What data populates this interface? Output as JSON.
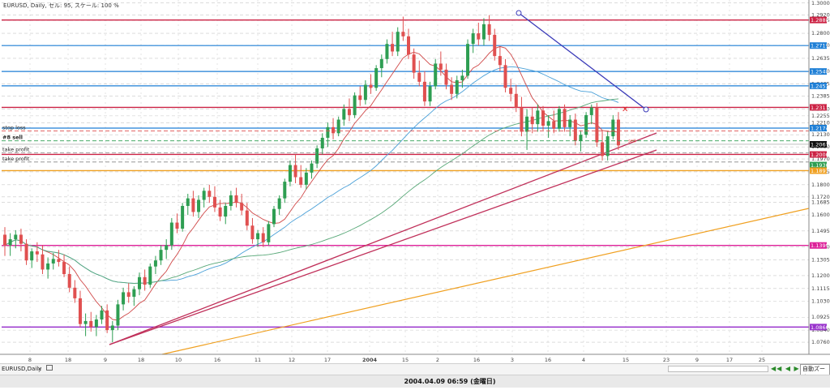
{
  "window": {
    "title": "EURUSD, Daily, セル: 95, スケール: 100 %",
    "tab_label": "EURUSD,Daily",
    "tab_close": "×",
    "status_time": "2004.04.09 06:59 (金曜日)",
    "nav_buttons": "◀◀ ◀ ▶ ▶▶",
    "mode_button": "自動ズーム"
  },
  "colors": {
    "candle_up": "#2e9e52",
    "candle_down": "#e05050",
    "grid": "#c8c8c8",
    "blue_hline": "#1e7fd6",
    "red_hline": "#cc2244",
    "magenta_hline": "#dd2299",
    "purple_hline": "#9933cc",
    "orange_line": "#f0a020",
    "ma_fast": "#d04848",
    "ma_mid": "#4aa0d8",
    "ma_slow": "#58a878",
    "trendline_red": "#c0305a",
    "trendline_blue": "#3a3ab8"
  },
  "chart_data": {
    "type": "candlestick",
    "symbol": "EURUSD",
    "timeframe": "Daily",
    "ylim": [
      1.068,
      1.302
    ],
    "y_ticks": [
      "1.3000",
      "1.2920",
      "1.2885",
      "1.2800",
      "1.2720",
      "1.2635",
      "1.2550",
      "1.2465",
      "1.2385",
      "1.2300",
      "1.2255",
      "1.2210",
      "1.2130",
      "1.2050",
      "1.1970",
      "1.1885",
      "1.1800",
      "1.1720",
      "1.1685",
      "1.1600",
      "1.1495",
      "1.1390",
      "1.1305",
      "1.1200",
      "1.1115",
      "1.1030",
      "1.0925",
      "1.0840",
      "1.0760"
    ],
    "x_ticks": [
      "8",
      "18",
      "9",
      "18",
      "10",
      "16",
      "11",
      "12",
      "17",
      "2004",
      "15",
      "2",
      "16",
      "3",
      "16",
      "4",
      "15",
      "23",
      "9",
      "17",
      "25"
    ],
    "price_labels": [
      {
        "value": "1.2888",
        "kind": "red"
      },
      {
        "value": "1.2719",
        "kind": "blue"
      },
      {
        "value": "1.2548",
        "kind": "blue"
      },
      {
        "value": "1.2453",
        "kind": "blue"
      },
      {
        "value": "1.2311",
        "kind": "red"
      },
      {
        "value": "1.2174",
        "kind": "blue"
      },
      {
        "value": "1.2067",
        "kind": "current"
      },
      {
        "value": "1.2000",
        "kind": "red"
      },
      {
        "value": "1.1930",
        "kind": "green"
      },
      {
        "value": "1.1893",
        "kind": "orange"
      },
      {
        "value": "1.1399",
        "kind": "magenta"
      },
      {
        "value": "1.0860",
        "kind": "purple"
      }
    ],
    "order_labels": {
      "stop_loss": "stop loss",
      "sell": "#8 sell",
      "take_profit_1": "take profit",
      "take_profit_2": "take profit",
      "sell_marker": "sell"
    },
    "candles": [
      {
        "o": 1.147,
        "h": 1.152,
        "l": 1.133,
        "c": 1.14
      },
      {
        "o": 1.14,
        "h": 1.148,
        "l": 1.133,
        "c": 1.144
      },
      {
        "o": 1.144,
        "h": 1.15,
        "l": 1.138,
        "c": 1.147
      },
      {
        "o": 1.147,
        "h": 1.151,
        "l": 1.136,
        "c": 1.141
      },
      {
        "o": 1.141,
        "h": 1.144,
        "l": 1.127,
        "c": 1.13
      },
      {
        "o": 1.13,
        "h": 1.138,
        "l": 1.125,
        "c": 1.136
      },
      {
        "o": 1.136,
        "h": 1.142,
        "l": 1.129,
        "c": 1.134
      },
      {
        "o": 1.134,
        "h": 1.14,
        "l": 1.121,
        "c": 1.124
      },
      {
        "o": 1.124,
        "h": 1.132,
        "l": 1.118,
        "c": 1.128
      },
      {
        "o": 1.128,
        "h": 1.135,
        "l": 1.124,
        "c": 1.131
      },
      {
        "o": 1.131,
        "h": 1.137,
        "l": 1.126,
        "c": 1.129
      },
      {
        "o": 1.129,
        "h": 1.134,
        "l": 1.119,
        "c": 1.121
      },
      {
        "o": 1.121,
        "h": 1.126,
        "l": 1.109,
        "c": 1.112
      },
      {
        "o": 1.112,
        "h": 1.117,
        "l": 1.102,
        "c": 1.105
      },
      {
        "o": 1.105,
        "h": 1.11,
        "l": 1.086,
        "c": 1.088
      },
      {
        "o": 1.088,
        "h": 1.095,
        "l": 1.08,
        "c": 1.09
      },
      {
        "o": 1.09,
        "h": 1.096,
        "l": 1.083,
        "c": 1.086
      },
      {
        "o": 1.086,
        "h": 1.094,
        "l": 1.08,
        "c": 1.091
      },
      {
        "o": 1.091,
        "h": 1.1,
        "l": 1.088,
        "c": 1.097
      },
      {
        "o": 1.097,
        "h": 1.101,
        "l": 1.082,
        "c": 1.084
      },
      {
        "o": 1.084,
        "h": 1.09,
        "l": 1.076,
        "c": 1.087
      },
      {
        "o": 1.087,
        "h": 1.104,
        "l": 1.084,
        "c": 1.101
      },
      {
        "o": 1.101,
        "h": 1.112,
        "l": 1.097,
        "c": 1.109
      },
      {
        "o": 1.109,
        "h": 1.115,
        "l": 1.102,
        "c": 1.106
      },
      {
        "o": 1.106,
        "h": 1.113,
        "l": 1.1,
        "c": 1.111
      },
      {
        "o": 1.111,
        "h": 1.122,
        "l": 1.107,
        "c": 1.119
      },
      {
        "o": 1.119,
        "h": 1.124,
        "l": 1.11,
        "c": 1.114
      },
      {
        "o": 1.114,
        "h": 1.128,
        "l": 1.112,
        "c": 1.126
      },
      {
        "o": 1.126,
        "h": 1.133,
        "l": 1.121,
        "c": 1.13
      },
      {
        "o": 1.13,
        "h": 1.14,
        "l": 1.127,
        "c": 1.137
      },
      {
        "o": 1.137,
        "h": 1.144,
        "l": 1.131,
        "c": 1.14
      },
      {
        "o": 1.14,
        "h": 1.158,
        "l": 1.137,
        "c": 1.155
      },
      {
        "o": 1.155,
        "h": 1.161,
        "l": 1.148,
        "c": 1.151
      },
      {
        "o": 1.151,
        "h": 1.168,
        "l": 1.149,
        "c": 1.166
      },
      {
        "o": 1.166,
        "h": 1.174,
        "l": 1.16,
        "c": 1.171
      },
      {
        "o": 1.171,
        "h": 1.176,
        "l": 1.159,
        "c": 1.162
      },
      {
        "o": 1.162,
        "h": 1.173,
        "l": 1.158,
        "c": 1.17
      },
      {
        "o": 1.17,
        "h": 1.178,
        "l": 1.165,
        "c": 1.176
      },
      {
        "o": 1.176,
        "h": 1.18,
        "l": 1.168,
        "c": 1.172
      },
      {
        "o": 1.172,
        "h": 1.179,
        "l": 1.162,
        "c": 1.165
      },
      {
        "o": 1.165,
        "h": 1.17,
        "l": 1.156,
        "c": 1.159
      },
      {
        "o": 1.159,
        "h": 1.168,
        "l": 1.154,
        "c": 1.166
      },
      {
        "o": 1.166,
        "h": 1.176,
        "l": 1.163,
        "c": 1.173
      },
      {
        "o": 1.173,
        "h": 1.178,
        "l": 1.165,
        "c": 1.168
      },
      {
        "o": 1.168,
        "h": 1.174,
        "l": 1.16,
        "c": 1.163
      },
      {
        "o": 1.163,
        "h": 1.168,
        "l": 1.15,
        "c": 1.153
      },
      {
        "o": 1.153,
        "h": 1.158,
        "l": 1.141,
        "c": 1.144
      },
      {
        "o": 1.144,
        "h": 1.15,
        "l": 1.139,
        "c": 1.148
      },
      {
        "o": 1.148,
        "h": 1.152,
        "l": 1.139,
        "c": 1.142
      },
      {
        "o": 1.142,
        "h": 1.156,
        "l": 1.14,
        "c": 1.154
      },
      {
        "o": 1.154,
        "h": 1.166,
        "l": 1.152,
        "c": 1.164
      },
      {
        "o": 1.164,
        "h": 1.173,
        "l": 1.16,
        "c": 1.171
      },
      {
        "o": 1.171,
        "h": 1.184,
        "l": 1.168,
        "c": 1.182
      },
      {
        "o": 1.182,
        "h": 1.196,
        "l": 1.179,
        "c": 1.193
      },
      {
        "o": 1.193,
        "h": 1.2,
        "l": 1.181,
        "c": 1.185
      },
      {
        "o": 1.185,
        "h": 1.193,
        "l": 1.178,
        "c": 1.18
      },
      {
        "o": 1.18,
        "h": 1.191,
        "l": 1.177,
        "c": 1.188
      },
      {
        "o": 1.188,
        "h": 1.196,
        "l": 1.184,
        "c": 1.194
      },
      {
        "o": 1.194,
        "h": 1.206,
        "l": 1.191,
        "c": 1.204
      },
      {
        "o": 1.204,
        "h": 1.214,
        "l": 1.2,
        "c": 1.211
      },
      {
        "o": 1.211,
        "h": 1.221,
        "l": 1.205,
        "c": 1.218
      },
      {
        "o": 1.218,
        "h": 1.224,
        "l": 1.21,
        "c": 1.214
      },
      {
        "o": 1.214,
        "h": 1.225,
        "l": 1.212,
        "c": 1.223
      },
      {
        "o": 1.223,
        "h": 1.233,
        "l": 1.219,
        "c": 1.23
      },
      {
        "o": 1.23,
        "h": 1.237,
        "l": 1.222,
        "c": 1.226
      },
      {
        "o": 1.226,
        "h": 1.241,
        "l": 1.224,
        "c": 1.239
      },
      {
        "o": 1.239,
        "h": 1.245,
        "l": 1.232,
        "c": 1.236
      },
      {
        "o": 1.236,
        "h": 1.249,
        "l": 1.233,
        "c": 1.246
      },
      {
        "o": 1.246,
        "h": 1.253,
        "l": 1.24,
        "c": 1.244
      },
      {
        "o": 1.244,
        "h": 1.259,
        "l": 1.242,
        "c": 1.257
      },
      {
        "o": 1.257,
        "h": 1.266,
        "l": 1.251,
        "c": 1.263
      },
      {
        "o": 1.263,
        "h": 1.276,
        "l": 1.26,
        "c": 1.273
      },
      {
        "o": 1.273,
        "h": 1.281,
        "l": 1.265,
        "c": 1.268
      },
      {
        "o": 1.268,
        "h": 1.284,
        "l": 1.265,
        "c": 1.281
      },
      {
        "o": 1.281,
        "h": 1.291,
        "l": 1.275,
        "c": 1.278
      },
      {
        "o": 1.278,
        "h": 1.283,
        "l": 1.263,
        "c": 1.266
      },
      {
        "o": 1.266,
        "h": 1.27,
        "l": 1.25,
        "c": 1.254
      },
      {
        "o": 1.254,
        "h": 1.262,
        "l": 1.245,
        "c": 1.248
      },
      {
        "o": 1.248,
        "h": 1.255,
        "l": 1.232,
        "c": 1.235
      },
      {
        "o": 1.235,
        "h": 1.248,
        "l": 1.232,
        "c": 1.245
      },
      {
        "o": 1.245,
        "h": 1.263,
        "l": 1.243,
        "c": 1.26
      },
      {
        "o": 1.26,
        "h": 1.268,
        "l": 1.252,
        "c": 1.256
      },
      {
        "o": 1.256,
        "h": 1.26,
        "l": 1.243,
        "c": 1.246
      },
      {
        "o": 1.246,
        "h": 1.251,
        "l": 1.236,
        "c": 1.24
      },
      {
        "o": 1.24,
        "h": 1.252,
        "l": 1.237,
        "c": 1.249
      },
      {
        "o": 1.249,
        "h": 1.256,
        "l": 1.244,
        "c": 1.252
      },
      {
        "o": 1.252,
        "h": 1.276,
        "l": 1.25,
        "c": 1.273
      },
      {
        "o": 1.273,
        "h": 1.283,
        "l": 1.267,
        "c": 1.28
      },
      {
        "o": 1.28,
        "h": 1.287,
        "l": 1.272,
        "c": 1.276
      },
      {
        "o": 1.276,
        "h": 1.29,
        "l": 1.272,
        "c": 1.286
      },
      {
        "o": 1.286,
        "h": 1.292,
        "l": 1.275,
        "c": 1.279
      },
      {
        "o": 1.279,
        "h": 1.283,
        "l": 1.262,
        "c": 1.265
      },
      {
        "o": 1.265,
        "h": 1.271,
        "l": 1.255,
        "c": 1.259
      },
      {
        "o": 1.259,
        "h": 1.263,
        "l": 1.241,
        "c": 1.244
      },
      {
        "o": 1.244,
        "h": 1.25,
        "l": 1.235,
        "c": 1.24
      },
      {
        "o": 1.24,
        "h": 1.246,
        "l": 1.228,
        "c": 1.231
      },
      {
        "o": 1.231,
        "h": 1.238,
        "l": 1.212,
        "c": 1.215
      },
      {
        "o": 1.215,
        "h": 1.23,
        "l": 1.203,
        "c": 1.225
      },
      {
        "o": 1.225,
        "h": 1.231,
        "l": 1.214,
        "c": 1.22
      },
      {
        "o": 1.22,
        "h": 1.233,
        "l": 1.215,
        "c": 1.229
      },
      {
        "o": 1.229,
        "h": 1.232,
        "l": 1.216,
        "c": 1.219
      },
      {
        "o": 1.219,
        "h": 1.226,
        "l": 1.211,
        "c": 1.222
      },
      {
        "o": 1.222,
        "h": 1.229,
        "l": 1.214,
        "c": 1.217
      },
      {
        "o": 1.217,
        "h": 1.232,
        "l": 1.215,
        "c": 1.23
      },
      {
        "o": 1.23,
        "h": 1.233,
        "l": 1.215,
        "c": 1.218
      },
      {
        "o": 1.218,
        "h": 1.226,
        "l": 1.212,
        "c": 1.223
      },
      {
        "o": 1.223,
        "h": 1.227,
        "l": 1.206,
        "c": 1.209
      },
      {
        "o": 1.209,
        "h": 1.216,
        "l": 1.202,
        "c": 1.213
      },
      {
        "o": 1.213,
        "h": 1.228,
        "l": 1.211,
        "c": 1.226
      },
      {
        "o": 1.226,
        "h": 1.233,
        "l": 1.22,
        "c": 1.231
      },
      {
        "o": 1.231,
        "h": 1.234,
        "l": 1.205,
        "c": 1.208
      },
      {
        "o": 1.208,
        "h": 1.216,
        "l": 1.196,
        "c": 1.199
      },
      {
        "o": 1.199,
        "h": 1.215,
        "l": 1.196,
        "c": 1.212
      },
      {
        "o": 1.212,
        "h": 1.226,
        "l": 1.21,
        "c": 1.223
      },
      {
        "o": 1.223,
        "h": 1.228,
        "l": 1.203,
        "c": 1.206
      }
    ]
  }
}
